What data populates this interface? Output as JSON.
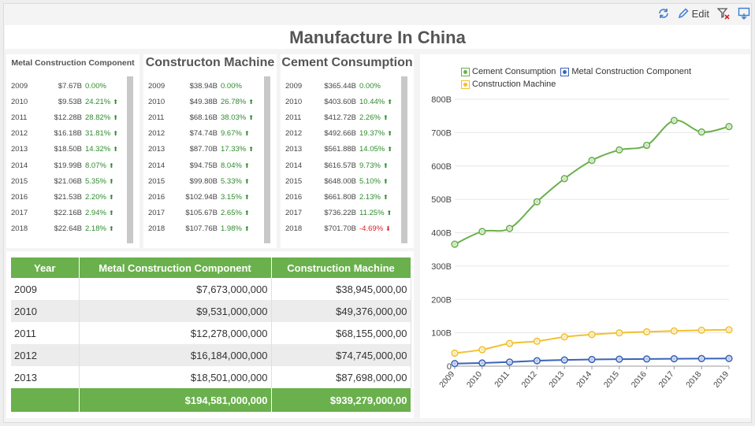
{
  "toolbar": {
    "edit_label": "Edit"
  },
  "page_title": "Manufacture In China",
  "kpis": [
    {
      "title": "Metal Construction Component",
      "rows": [
        {
          "year": "2009",
          "value": "$7.67B",
          "pct": "0.00%",
          "dir": ""
        },
        {
          "year": "2010",
          "value": "$9.53B",
          "pct": "24.21%",
          "dir": "up"
        },
        {
          "year": "2011",
          "value": "$12.28B",
          "pct": "28.82%",
          "dir": "up"
        },
        {
          "year": "2012",
          "value": "$16.18B",
          "pct": "31.81%",
          "dir": "up"
        },
        {
          "year": "2013",
          "value": "$18.50B",
          "pct": "14.32%",
          "dir": "up"
        },
        {
          "year": "2014",
          "value": "$19.99B",
          "pct": "8.07%",
          "dir": "up"
        },
        {
          "year": "2015",
          "value": "$21.06B",
          "pct": "5.35%",
          "dir": "up"
        },
        {
          "year": "2016",
          "value": "$21.53B",
          "pct": "2.20%",
          "dir": "up"
        },
        {
          "year": "2017",
          "value": "$22.16B",
          "pct": "2.94%",
          "dir": "up"
        },
        {
          "year": "2018",
          "value": "$22.64B",
          "pct": "2.18%",
          "dir": "up"
        }
      ]
    },
    {
      "title": "Constructon Machine",
      "rows": [
        {
          "year": "2009",
          "value": "$38.94B",
          "pct": "0.00%",
          "dir": ""
        },
        {
          "year": "2010",
          "value": "$49.38B",
          "pct": "26.78%",
          "dir": "up"
        },
        {
          "year": "2011",
          "value": "$68.16B",
          "pct": "38.03%",
          "dir": "up"
        },
        {
          "year": "2012",
          "value": "$74.74B",
          "pct": "9.67%",
          "dir": "up"
        },
        {
          "year": "2013",
          "value": "$87.70B",
          "pct": "17.33%",
          "dir": "up"
        },
        {
          "year": "2014",
          "value": "$94.75B",
          "pct": "8.04%",
          "dir": "up"
        },
        {
          "year": "2015",
          "value": "$99.80B",
          "pct": "5.33%",
          "dir": "up"
        },
        {
          "year": "2016",
          "value": "$102.94B",
          "pct": "3.15%",
          "dir": "up"
        },
        {
          "year": "2017",
          "value": "$105.67B",
          "pct": "2.65%",
          "dir": "up"
        },
        {
          "year": "2018",
          "value": "$107.76B",
          "pct": "1.98%",
          "dir": "up"
        }
      ]
    },
    {
      "title": "Cement Consumption",
      "rows": [
        {
          "year": "2009",
          "value": "$365.44B",
          "pct": "0.00%",
          "dir": ""
        },
        {
          "year": "2010",
          "value": "$403.60B",
          "pct": "10.44%",
          "dir": "up"
        },
        {
          "year": "2011",
          "value": "$412.72B",
          "pct": "2.26%",
          "dir": "up"
        },
        {
          "year": "2012",
          "value": "$492.66B",
          "pct": "19.37%",
          "dir": "up"
        },
        {
          "year": "2013",
          "value": "$561.88B",
          "pct": "14.05%",
          "dir": "up"
        },
        {
          "year": "2014",
          "value": "$616.57B",
          "pct": "9.73%",
          "dir": "up"
        },
        {
          "year": "2015",
          "value": "$648.00B",
          "pct": "5.10%",
          "dir": "up"
        },
        {
          "year": "2016",
          "value": "$661.80B",
          "pct": "2.13%",
          "dir": "up"
        },
        {
          "year": "2017",
          "value": "$736.22B",
          "pct": "11.25%",
          "dir": "up"
        },
        {
          "year": "2018",
          "value": "$701.70B",
          "pct": "-4.69%",
          "dir": "down"
        }
      ]
    }
  ],
  "table": {
    "columns": [
      "Year",
      "Metal Construction Component",
      "Construction Machine"
    ],
    "rows": [
      [
        "2009",
        "$7,673,000,000",
        "$38,945,000,00"
      ],
      [
        "2010",
        "$9,531,000,000",
        "$49,376,000,00"
      ],
      [
        "2011",
        "$12,278,000,000",
        "$68,155,000,00"
      ],
      [
        "2012",
        "$16,184,000,000",
        "$74,745,000,00"
      ],
      [
        "2013",
        "$18,501,000,000",
        "$87,698,000,00"
      ]
    ],
    "totals": [
      "",
      "$194,581,000,000",
      "$939,279,000,00"
    ]
  },
  "chart_data": {
    "type": "line",
    "x": [
      "2009",
      "2010",
      "2011",
      "2012",
      "2013",
      "2014",
      "2015",
      "2016",
      "2017",
      "2018",
      "2019"
    ],
    "yticks": [
      "0",
      "100B",
      "200B",
      "300B",
      "400B",
      "500B",
      "600B",
      "700B",
      "800B"
    ],
    "ylim": [
      0,
      800
    ],
    "grid": true,
    "legend_position": "top",
    "series": [
      {
        "name": "Cement Consumption",
        "color": "#6ab04c",
        "values": [
          365.44,
          403.6,
          412.72,
          492.66,
          561.88,
          616.57,
          648.0,
          661.8,
          736.22,
          701.7,
          718
        ]
      },
      {
        "name": "Metal Construction Component",
        "color": "#3a64b8",
        "values": [
          7.67,
          9.53,
          12.28,
          16.18,
          18.5,
          19.99,
          21.06,
          21.53,
          22.16,
          22.64,
          23
        ]
      },
      {
        "name": "Construction Machine",
        "color": "#f2c12e",
        "values": [
          38.94,
          49.38,
          68.16,
          74.74,
          87.7,
          94.75,
          99.8,
          102.94,
          105.67,
          107.76,
          109
        ]
      }
    ]
  }
}
